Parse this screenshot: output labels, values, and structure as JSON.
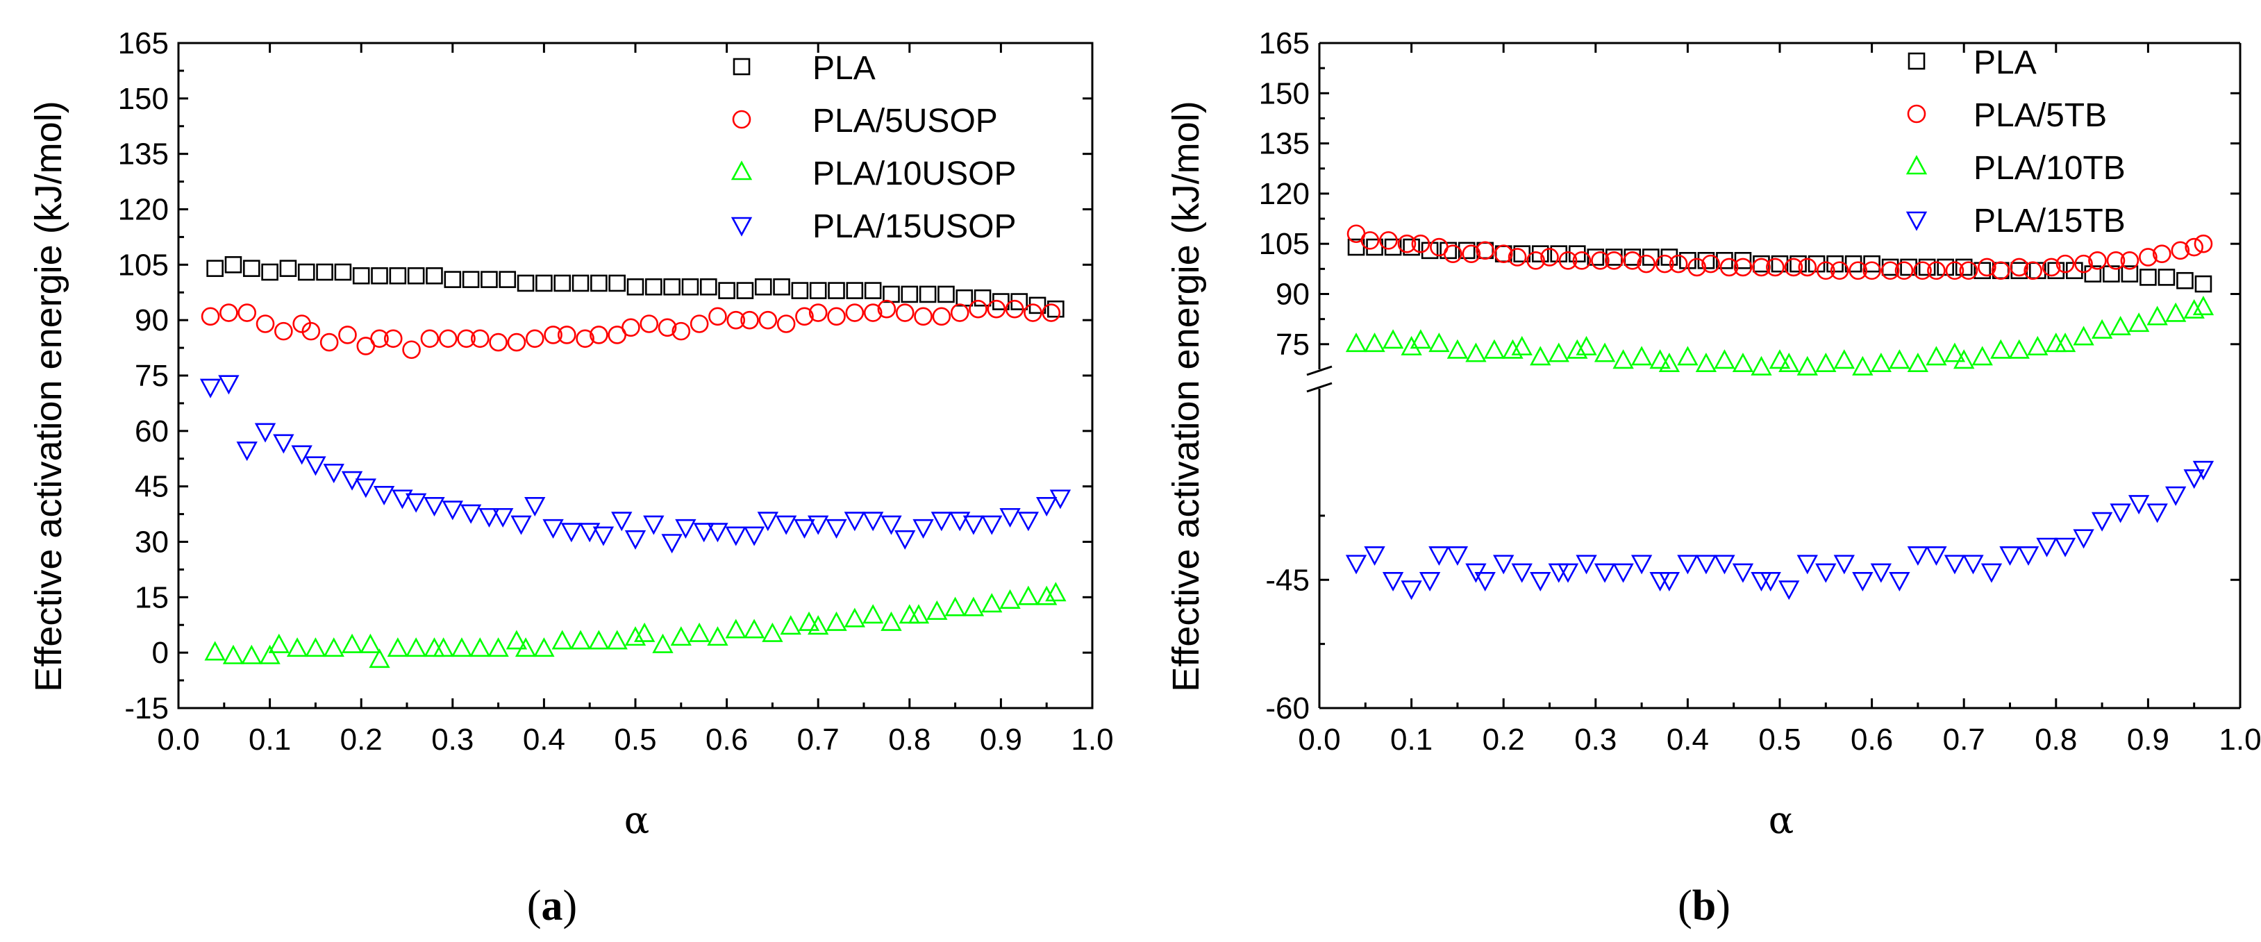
{
  "chart_data": [
    {
      "type": "scatter",
      "panel_label": "a",
      "xlabel": "α",
      "ylabel": "Effective activation energie (kJ/mol)",
      "xlim": [
        0.0,
        1.0
      ],
      "ylim": [
        -15,
        165
      ],
      "x_ticks": [
        "0.0",
        "0.1",
        "0.2",
        "0.3",
        "0.4",
        "0.5",
        "0.6",
        "0.7",
        "0.8",
        "0.9",
        "1.0"
      ],
      "y_ticks": [
        "-15",
        "0",
        "15",
        "30",
        "45",
        "60",
        "75",
        "90",
        "105",
        "120",
        "135",
        "150",
        "165"
      ],
      "legend_position": "top-right",
      "series": [
        {
          "name": "PLA",
          "marker": "square",
          "color": "#000000",
          "x": [
            0.04,
            0.06,
            0.08,
            0.1,
            0.12,
            0.14,
            0.16,
            0.18,
            0.2,
            0.22,
            0.24,
            0.26,
            0.28,
            0.3,
            0.32,
            0.34,
            0.36,
            0.38,
            0.4,
            0.42,
            0.44,
            0.46,
            0.48,
            0.5,
            0.52,
            0.54,
            0.56,
            0.58,
            0.6,
            0.62,
            0.64,
            0.66,
            0.68,
            0.7,
            0.72,
            0.74,
            0.76,
            0.78,
            0.8,
            0.82,
            0.84,
            0.86,
            0.88,
            0.9,
            0.92,
            0.94,
            0.96
          ],
          "y": [
            104,
            105,
            104,
            103,
            104,
            103,
            103,
            103,
            102,
            102,
            102,
            102,
            102,
            101,
            101,
            101,
            101,
            100,
            100,
            100,
            100,
            100,
            100,
            99,
            99,
            99,
            99,
            99,
            98,
            98,
            99,
            99,
            98,
            98,
            98,
            98,
            98,
            97,
            97,
            97,
            97,
            96,
            96,
            95,
            95,
            94,
            93
          ]
        },
        {
          "name": "PLA/5USOP",
          "marker": "circle",
          "color": "#ff0000",
          "x": [
            0.035,
            0.055,
            0.075,
            0.095,
            0.115,
            0.135,
            0.145,
            0.165,
            0.185,
            0.205,
            0.22,
            0.235,
            0.255,
            0.275,
            0.295,
            0.315,
            0.33,
            0.35,
            0.37,
            0.39,
            0.41,
            0.425,
            0.445,
            0.46,
            0.48,
            0.495,
            0.515,
            0.535,
            0.55,
            0.57,
            0.59,
            0.61,
            0.625,
            0.645,
            0.665,
            0.685,
            0.7,
            0.72,
            0.74,
            0.76,
            0.775,
            0.795,
            0.815,
            0.835,
            0.855,
            0.875,
            0.895,
            0.915,
            0.935,
            0.955
          ],
          "y": [
            91,
            92,
            92,
            89,
            87,
            89,
            87,
            84,
            86,
            83,
            85,
            85,
            82,
            85,
            85,
            85,
            85,
            84,
            84,
            85,
            86,
            86,
            85,
            86,
            86,
            88,
            89,
            88,
            87,
            89,
            91,
            90,
            90,
            90,
            89,
            91,
            92,
            91,
            92,
            92,
            93,
            92,
            91,
            91,
            92,
            93,
            93,
            93,
            92,
            92
          ]
        },
        {
          "name": "PLA/10USOP",
          "marker": "triangle-up",
          "color": "#00ff00",
          "x": [
            0.04,
            0.06,
            0.08,
            0.1,
            0.11,
            0.13,
            0.15,
            0.17,
            0.19,
            0.21,
            0.22,
            0.24,
            0.26,
            0.28,
            0.29,
            0.31,
            0.33,
            0.35,
            0.37,
            0.38,
            0.4,
            0.42,
            0.44,
            0.46,
            0.48,
            0.5,
            0.51,
            0.53,
            0.55,
            0.57,
            0.59,
            0.61,
            0.63,
            0.65,
            0.67,
            0.69,
            0.7,
            0.72,
            0.74,
            0.76,
            0.78,
            0.8,
            0.81,
            0.83,
            0.85,
            0.87,
            0.89,
            0.91,
            0.93,
            0.95,
            0.96
          ],
          "y": [
            0,
            -1,
            -1,
            -1,
            2,
            1,
            1,
            1,
            2,
            2,
            -2,
            1,
            1,
            1,
            1,
            1,
            1,
            1,
            3,
            1,
            1,
            3,
            3,
            3,
            3,
            4,
            5,
            2,
            4,
            5,
            4,
            6,
            6,
            5,
            7,
            8,
            7,
            8,
            9,
            10,
            8,
            10,
            10,
            11,
            12,
            12,
            13,
            14,
            15,
            15,
            16
          ]
        },
        {
          "name": "PLA/15USOP",
          "marker": "triangle-down",
          "color": "#0000ff",
          "x": [
            0.035,
            0.055,
            0.075,
            0.095,
            0.115,
            0.135,
            0.15,
            0.17,
            0.19,
            0.205,
            0.225,
            0.245,
            0.26,
            0.28,
            0.3,
            0.32,
            0.34,
            0.355,
            0.375,
            0.39,
            0.41,
            0.43,
            0.45,
            0.465,
            0.485,
            0.5,
            0.52,
            0.54,
            0.555,
            0.575,
            0.59,
            0.61,
            0.63,
            0.645,
            0.665,
            0.685,
            0.7,
            0.72,
            0.74,
            0.76,
            0.78,
            0.795,
            0.815,
            0.835,
            0.855,
            0.87,
            0.89,
            0.91,
            0.93,
            0.95,
            0.965
          ],
          "y": [
            72,
            73,
            55,
            60,
            57,
            54,
            51,
            49,
            47,
            45,
            43,
            42,
            41,
            40,
            39,
            38,
            37,
            37,
            35,
            40,
            34,
            33,
            33,
            32,
            36,
            31,
            35,
            30,
            34,
            33,
            33,
            32,
            32,
            36,
            35,
            34,
            35,
            34,
            36,
            36,
            35,
            31,
            34,
            36,
            36,
            35,
            35,
            37,
            36,
            40,
            42
          ]
        }
      ]
    },
    {
      "type": "scatter",
      "panel_label": "b",
      "xlabel": "α",
      "ylabel": "Effective activation energie (kJ/mol)",
      "xlim": [
        0.0,
        1.0
      ],
      "ylim": [
        -60,
        165
      ],
      "axis_break": "between 75 and -45",
      "x_ticks": [
        "0.0",
        "0.1",
        "0.2",
        "0.3",
        "0.4",
        "0.5",
        "0.6",
        "0.7",
        "0.8",
        "0.9",
        "1.0"
      ],
      "y_ticks": [
        "-60",
        "-45",
        "75",
        "90",
        "105",
        "120",
        "135",
        "150",
        "165"
      ],
      "legend_position": "top-right",
      "series": [
        {
          "name": "PLA",
          "marker": "square",
          "color": "#000000",
          "x": [
            0.04,
            0.06,
            0.08,
            0.1,
            0.12,
            0.14,
            0.16,
            0.18,
            0.2,
            0.22,
            0.24,
            0.26,
            0.28,
            0.3,
            0.32,
            0.34,
            0.36,
            0.38,
            0.4,
            0.42,
            0.44,
            0.46,
            0.48,
            0.5,
            0.52,
            0.54,
            0.56,
            0.58,
            0.6,
            0.62,
            0.64,
            0.66,
            0.68,
            0.7,
            0.72,
            0.74,
            0.76,
            0.78,
            0.8,
            0.82,
            0.84,
            0.86,
            0.88,
            0.9,
            0.92,
            0.94,
            0.96
          ],
          "y": [
            104,
            104,
            104,
            104,
            103,
            103,
            103,
            103,
            102,
            102,
            102,
            102,
            102,
            101,
            101,
            101,
            101,
            101,
            100,
            100,
            100,
            100,
            99,
            99,
            99,
            99,
            99,
            99,
            99,
            98,
            98,
            98,
            98,
            98,
            97,
            97,
            97,
            97,
            97,
            97,
            96,
            96,
            96,
            95,
            95,
            94,
            93
          ]
        },
        {
          "name": "PLA/5TB",
          "marker": "circle",
          "color": "#ff0000",
          "x": [
            0.04,
            0.055,
            0.075,
            0.095,
            0.11,
            0.13,
            0.145,
            0.165,
            0.18,
            0.2,
            0.215,
            0.235,
            0.25,
            0.27,
            0.285,
            0.305,
            0.32,
            0.34,
            0.355,
            0.375,
            0.39,
            0.41,
            0.425,
            0.445,
            0.46,
            0.48,
            0.495,
            0.515,
            0.53,
            0.55,
            0.565,
            0.585,
            0.6,
            0.62,
            0.635,
            0.655,
            0.67,
            0.69,
            0.705,
            0.725,
            0.74,
            0.76,
            0.775,
            0.795,
            0.81,
            0.83,
            0.845,
            0.865,
            0.88,
            0.9,
            0.915,
            0.935,
            0.95,
            0.96
          ],
          "y": [
            108,
            106,
            106,
            105,
            105,
            104,
            102,
            102,
            103,
            102,
            101,
            100,
            101,
            100,
            100,
            100,
            100,
            100,
            99,
            99,
            99,
            98,
            99,
            98,
            98,
            98,
            98,
            98,
            98,
            97,
            97,
            97,
            97,
            97,
            97,
            97,
            97,
            97,
            97,
            98,
            97,
            98,
            97,
            98,
            99,
            99,
            100,
            100,
            100,
            101,
            102,
            103,
            104,
            105
          ]
        },
        {
          "name": "PLA/10TB",
          "marker": "triangle-up",
          "color": "#00ff00",
          "x": [
            0.04,
            0.06,
            0.08,
            0.1,
            0.11,
            0.13,
            0.15,
            0.17,
            0.19,
            0.21,
            0.22,
            0.24,
            0.26,
            0.28,
            0.29,
            0.31,
            0.33,
            0.35,
            0.37,
            0.38,
            0.4,
            0.42,
            0.44,
            0.46,
            0.48,
            0.5,
            0.51,
            0.53,
            0.55,
            0.57,
            0.59,
            0.61,
            0.63,
            0.65,
            0.67,
            0.69,
            0.7,
            0.72,
            0.74,
            0.76,
            0.78,
            0.8,
            0.81,
            0.83,
            0.85,
            0.87,
            0.89,
            0.91,
            0.93,
            0.95,
            0.96
          ],
          "y": [
            75,
            75,
            76,
            74,
            76,
            75,
            73,
            72,
            73,
            73,
            74,
            71,
            72,
            73,
            74,
            72,
            70,
            71,
            70,
            69,
            71,
            69,
            70,
            69,
            68,
            70,
            69,
            68,
            69,
            70,
            68,
            69,
            70,
            69,
            71,
            72,
            70,
            71,
            73,
            73,
            74,
            75,
            75,
            77,
            79,
            80,
            81,
            83,
            84,
            85,
            86
          ]
        },
        {
          "name": "PLA/15TB",
          "marker": "triangle-down",
          "color": "#0000ff",
          "x": [
            0.04,
            0.06,
            0.08,
            0.1,
            0.12,
            0.13,
            0.15,
            0.17,
            0.18,
            0.2,
            0.22,
            0.24,
            0.26,
            0.27,
            0.29,
            0.31,
            0.33,
            0.35,
            0.37,
            0.38,
            0.4,
            0.42,
            0.44,
            0.46,
            0.48,
            0.49,
            0.51,
            0.53,
            0.55,
            0.57,
            0.59,
            0.61,
            0.63,
            0.65,
            0.67,
            0.69,
            0.71,
            0.73,
            0.75,
            0.77,
            0.79,
            0.81,
            0.83,
            0.85,
            0.87,
            0.89,
            0.91,
            0.93,
            0.95,
            0.96
          ],
          "y": [
            -43,
            -42,
            -45,
            -46,
            -45,
            -42,
            -42,
            -44,
            -45,
            -43,
            -44,
            -45,
            -44,
            -44,
            -43,
            -44,
            -44,
            -43,
            -45,
            -45,
            -43,
            -43,
            -43,
            -44,
            -45,
            -45,
            -46,
            -43,
            -44,
            -43,
            -45,
            -44,
            -45,
            -42,
            -42,
            -43,
            -43,
            -44,
            -42,
            -42,
            -41,
            -41,
            -40,
            -38,
            -37,
            -36,
            -37,
            -35,
            -33,
            -32
          ]
        }
      ]
    }
  ]
}
